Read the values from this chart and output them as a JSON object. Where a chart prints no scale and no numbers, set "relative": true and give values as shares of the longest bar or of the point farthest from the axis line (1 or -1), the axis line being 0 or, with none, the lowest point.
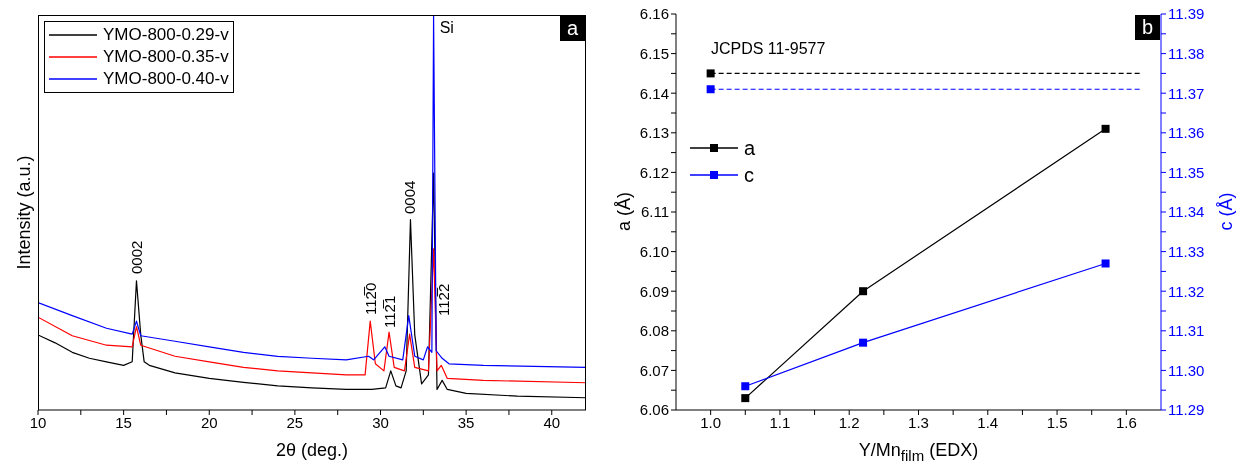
{
  "chart_data": [
    {
      "type": "line",
      "relative": true,
      "xlabel": "2θ (deg.)",
      "ylabel": "Intensity (a.u.)",
      "legend": "top left",
      "marker": "none",
      "line_style": "solid",
      "xlim": [
        10,
        42
      ],
      "xticks": [
        10,
        {
          "value": 12.5,
          "label": null
        },
        15,
        {
          "value": 17.5,
          "label": null
        },
        20,
        {
          "value": 22.5,
          "label": null
        },
        25,
        {
          "value": 27.5,
          "label": null
        },
        30,
        {
          "value": 32.5,
          "label": null
        },
        35,
        {
          "value": 37.5,
          "label": null
        },
        40
      ],
      "series": [
        {
          "name": "YMO-800-0.29-v",
          "color": "#000000",
          "x": [
            10,
            11,
            12,
            13,
            14,
            15,
            15.5,
            15.75,
            16.0,
            16.2,
            16.5,
            18,
            20,
            22,
            24,
            26,
            28,
            29.5,
            30.3,
            30.6,
            30.9,
            31.2,
            31.5,
            31.75,
            32.0,
            32.4,
            32.8,
            33.1,
            33.3,
            33.6,
            33.9,
            35,
            38,
            42
          ],
          "values": [
            0.19,
            0.17,
            0.146,
            0.131,
            0.122,
            0.113,
            0.122,
            0.327,
            0.19,
            0.122,
            0.113,
            0.094,
            0.08,
            0.07,
            0.061,
            0.056,
            0.052,
            0.052,
            0.056,
            0.099,
            0.061,
            0.056,
            0.099,
            0.482,
            0.19,
            0.066,
            0.089,
            0.6,
            0.052,
            0.075,
            0.052,
            0.042,
            0.035,
            0.031
          ]
        },
        {
          "name": "YMO-800-0.35-v",
          "color": "#ff0000",
          "x": [
            10,
            12,
            14,
            15.5,
            15.75,
            16.0,
            18,
            20,
            22,
            24,
            26,
            28,
            29.1,
            29.4,
            29.7,
            30.2,
            30.5,
            30.8,
            31.4,
            31.7,
            32.0,
            32.8,
            33.1,
            33.3,
            33.55,
            33.9,
            36,
            42
          ],
          "values": [
            0.235,
            0.188,
            0.164,
            0.16,
            0.211,
            0.164,
            0.136,
            0.122,
            0.108,
            0.099,
            0.094,
            0.089,
            0.089,
            0.225,
            0.117,
            0.099,
            0.197,
            0.108,
            0.099,
            0.192,
            0.108,
            0.099,
            0.408,
            0.099,
            0.113,
            0.08,
            0.075,
            0.069
          ]
        },
        {
          "name": "YMO-800-0.40-v",
          "color": "#0000ff",
          "x": [
            10,
            12,
            14,
            15.5,
            15.75,
            16.0,
            18,
            20,
            22,
            24,
            26,
            28,
            29.3,
            29.6,
            30.25,
            30.5,
            31.3,
            31.65,
            32.0,
            32.5,
            32.75,
            33.0,
            33.1,
            33.25,
            33.6,
            34,
            36,
            42
          ],
          "values": [
            0.272,
            0.239,
            0.207,
            0.192,
            0.225,
            0.188,
            0.174,
            0.16,
            0.146,
            0.136,
            0.131,
            0.127,
            0.136,
            0.127,
            0.16,
            0.136,
            0.127,
            0.239,
            0.136,
            0.127,
            0.16,
            0.146,
            1.0,
            0.15,
            0.131,
            0.117,
            0.113,
            0.108
          ]
        }
      ],
      "annotations": [
        "a",
        "0002",
        "112̅0",
        "112̅1",
        "0004",
        "112̅2",
        "Si"
      ]
    },
    {
      "type": "line",
      "xlabel": "Y/Mn$_{film}$ (EDX)",
      "ylabel": "a (Å)",
      "y2label": "c (Å)",
      "legend": "left",
      "marker": "square",
      "line_style": "solid",
      "xlim": [
        0.95,
        1.65
      ],
      "xticks": [
        {
          "value": 1.0,
          "label": "1.0"
        },
        {
          "value": 1.05,
          "label": null
        },
        1.1,
        {
          "value": 1.15,
          "label": null
        },
        1.2,
        {
          "value": 1.25,
          "label": null
        },
        1.3,
        {
          "value": 1.35,
          "label": null
        },
        1.4,
        {
          "value": 1.45,
          "label": null
        },
        1.5,
        {
          "value": 1.55,
          "label": null
        },
        1.6
      ],
      "ylim": [
        6.06,
        6.16
      ],
      "yticks": [
        6.06,
        {
          "value": 6.065,
          "label": null
        },
        6.07,
        {
          "value": 6.075,
          "label": null
        },
        6.08,
        {
          "value": 6.085,
          "label": null
        },
        6.09,
        {
          "value": 6.095,
          "label": null
        },
        {
          "value": 6.1,
          "label": "6.10"
        },
        {
          "value": 6.105,
          "label": null
        },
        6.11,
        {
          "value": 6.115,
          "label": null
        },
        6.12,
        {
          "value": 6.125,
          "label": null
        },
        6.13,
        {
          "value": 6.135,
          "label": null
        },
        6.14,
        {
          "value": 6.145,
          "label": null
        },
        6.15,
        {
          "value": 6.155,
          "label": null
        },
        6.16
      ],
      "y2lim": [
        11.29,
        11.39
      ],
      "y2ticks": [
        11.29,
        {
          "value": 11.295,
          "label": null
        },
        {
          "value": 11.3,
          "label": "11.30"
        },
        {
          "value": 11.305,
          "label": null
        },
        11.31,
        {
          "value": 11.315,
          "label": null
        },
        11.32,
        {
          "value": 11.325,
          "label": null
        },
        11.33,
        {
          "value": 11.335,
          "label": null
        },
        11.34,
        {
          "value": 11.345,
          "label": null
        },
        11.35,
        {
          "value": 11.355,
          "label": null
        },
        11.36,
        {
          "value": 11.365,
          "label": null
        },
        11.37,
        {
          "value": 11.375,
          "label": null
        },
        11.38,
        {
          "value": 11.385,
          "label": null
        },
        11.39
      ],
      "series": [
        {
          "name": "a",
          "color": "#000000",
          "x": [
            1.05,
            1.22,
            1.57
          ],
          "values": [
            6.063,
            6.09,
            6.131
          ]
        },
        {
          "name": "c",
          "color": "#0000ff",
          "axis": "y2",
          "x": [
            1.05,
            1.22,
            1.57
          ],
          "values": [
            11.296,
            11.307,
            11.327
          ]
        },
        {
          "type": "line",
          "color": "#000000",
          "line_style": "dashed",
          "marker": "none",
          "x": [
            1.0,
            1.62
          ],
          "values": [
            6.145,
            6.145
          ]
        },
        {
          "type": "scatter",
          "color": "#000000",
          "x": [
            1.0
          ],
          "values": [
            6.145
          ]
        },
        {
          "type": "line",
          "color": "#0000ff",
          "axis": "y2",
          "line_style": "dashed",
          "marker": "none",
          "x": [
            1.0,
            1.62
          ],
          "values": [
            11.371,
            11.371
          ]
        },
        {
          "type": "scatter",
          "color": "#0000ff",
          "axis": "y2",
          "x": [
            1.0
          ],
          "values": [
            11.371
          ]
        }
      ],
      "annotations": [
        "b",
        "JCPDS 11-9577"
      ]
    }
  ]
}
